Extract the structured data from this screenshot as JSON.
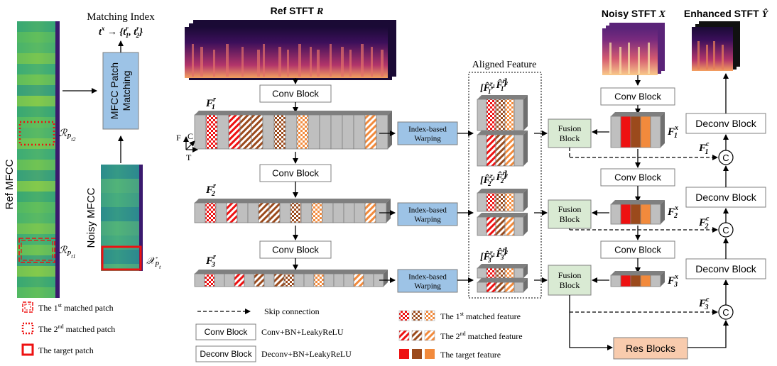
{
  "left": {
    "ref_mfcc_label": "Ref MFCC",
    "noisy_mfcc_label": "Noisy MFCC",
    "matching_index_title": "Matching Index",
    "matching_index_formula": "t^x → {t_1^r, t_2^r}",
    "mfcc_patch_matching": [
      "MFCC Patch",
      "Matching"
    ],
    "patch_label_2": "R_{P_{t_2}}",
    "patch_label_1": "R_{P_{t_1}}",
    "target_patch_label": "X_{P_t}"
  },
  "ref_stft_title": "Ref STFT R",
  "noisy_stft_title": "Noisy STFT X",
  "enhanced_stft_title": "Enhanced STFT Ŷ",
  "aligned_feature_title": "Aligned Feature",
  "blocks": {
    "conv": "Conv Block",
    "deconv": "Deconv Block",
    "warp": [
      "Index-based",
      "Warping"
    ],
    "fusion": [
      "Fusion",
      "Block"
    ],
    "res": "Res Blocks",
    "concat": "C"
  },
  "feature_labels": {
    "ref": [
      "F_1^r",
      "F_2^r",
      "F_3^r"
    ],
    "noisy": [
      "F_1^x",
      "F_2^x",
      "F_3^x"
    ],
    "skip": [
      "F_1^c",
      "F_2^c",
      "F_3^c"
    ],
    "aligned": [
      "[F̂_1^{r_1}, F̂_1^{r_2}]",
      "[F̂_2^{r_1}, F̂_2^{r_2}]",
      "[F̂_3^{r_1}, F̂_3^{r_2}]"
    ]
  },
  "axes": {
    "f": "F",
    "c": "C",
    "t": "T"
  },
  "legend": {
    "first_patch": "The 1st matched patch",
    "second_patch": "The 2nd matched patch",
    "target_patch": "The target patch",
    "skip": "Skip connection",
    "conv_desc": "Conv+BN+LeakyReLU",
    "deconv_desc": "Deconv+BN+LeakyReLU",
    "first_feature": "The 1st matched feature",
    "second_feature": "The 2nd matched feature",
    "target_feature": "The target feature"
  },
  "colors": {
    "red": "#ee1111",
    "brown": "#9b4a1c",
    "orange": "#f28a3c",
    "blue_block": "#9dc3e6",
    "green_block": "#d9ead3",
    "peach_block": "#f8cbad",
    "gray": "#bfbfbf"
  }
}
